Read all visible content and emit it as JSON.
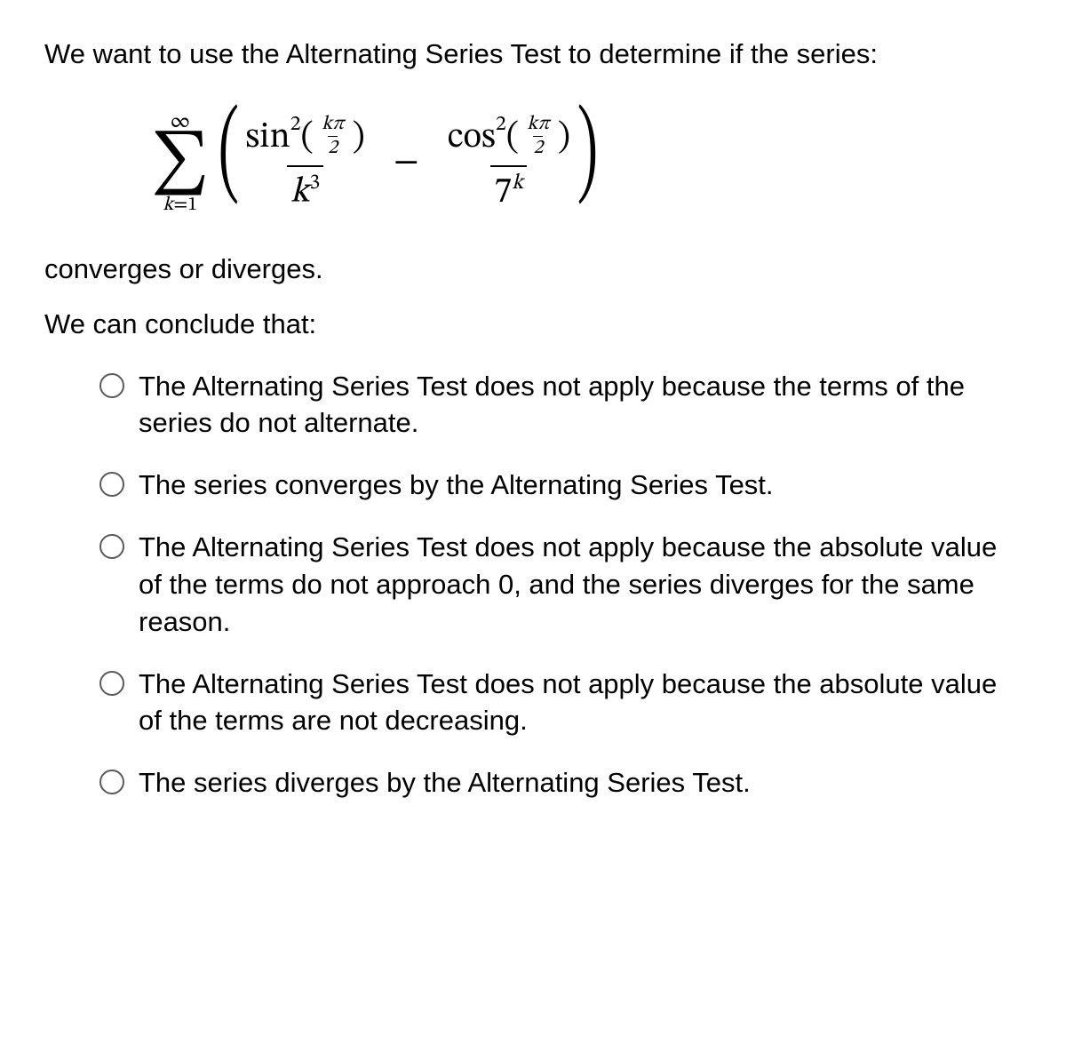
{
  "question": {
    "intro": "We want to use the Alternating Series Test to determine if the series:",
    "outro": "converges or diverges.",
    "conclude": "We can conclude that:"
  },
  "formula": {
    "sum_top": "∞",
    "sum_bottom_var": "k",
    "sum_bottom_eq": "=1",
    "sigma": "∑",
    "term1_num_func": "sin",
    "term1_num_sup": "2",
    "term1_arg_num": "kπ",
    "term1_arg_den": "2",
    "term1_den": "k",
    "term1_den_sup": "3",
    "minus": "−",
    "term2_num_func": "cos",
    "term2_num_sup": "2",
    "term2_arg_num": "kπ",
    "term2_arg_den": "2",
    "term2_den_base": "7",
    "term2_den_sup": "k"
  },
  "options": [
    "The Alternating Series Test does not apply because the terms of the series do not alternate.",
    "The series converges by the Alternating Series Test.",
    "The Alternating Series Test does not apply because the absolute value of the terms do not approach 0, and the series diverges for the same reason.",
    "The Alternating Series Test does not apply because the absolute value of the terms are not decreasing.",
    "The series diverges by the Alternating Series Test."
  ]
}
